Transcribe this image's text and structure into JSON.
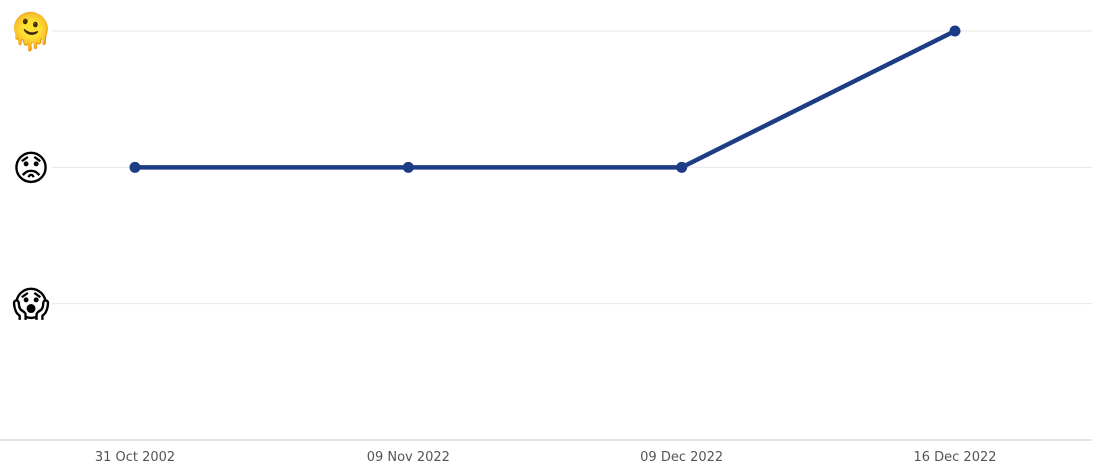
{
  "chart_data": {
    "type": "line",
    "title": "",
    "xlabel": "",
    "ylabel": "",
    "categories": [
      "31 Oct 2002",
      "09 Nov 2022",
      "09 Dec 2022",
      "16 Dec 2022"
    ],
    "y_levels": [
      {
        "value": 1,
        "emoji": "😱",
        "icon": "face-screaming-in-fear-icon"
      },
      {
        "value": 2,
        "emoji": "😟",
        "icon": "worried-face-icon"
      },
      {
        "value": 3,
        "emoji": "🫠",
        "icon": "melting-face-icon"
      }
    ],
    "ylim": [
      0,
      3
    ],
    "grid": true,
    "series": [
      {
        "values": [
          2,
          2,
          2,
          3
        ],
        "color": "#1c3d85"
      }
    ],
    "colors": {
      "line": "#1c3d85",
      "grid": "#e6e6e6",
      "axis": "#c8c8c8"
    }
  }
}
